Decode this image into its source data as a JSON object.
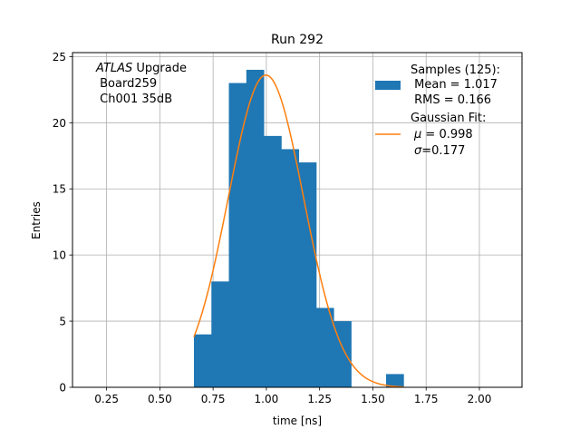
{
  "chart_data": {
    "type": "bar",
    "title": "Run 292",
    "xlabel": "time [ns]",
    "ylabel": "Entries",
    "xlim": [
      0.09,
      2.2
    ],
    "ylim": [
      0,
      25.3
    ],
    "grid": true,
    "xticks": [
      0.25,
      0.5,
      0.75,
      1.0,
      1.25,
      1.5,
      1.75,
      2.0
    ],
    "xtick_labels": [
      "0.25",
      "0.50",
      "0.75",
      "1.00",
      "1.25",
      "1.50",
      "1.75",
      "2.00"
    ],
    "yticks": [
      0,
      5,
      10,
      15,
      20,
      25
    ],
    "ytick_labels": [
      "0",
      "5",
      "10",
      "15",
      "20",
      "25"
    ],
    "annotation": {
      "italic": "ATLAS",
      "line1_rest": " Upgrade",
      "line2": " Board259",
      "line3": " Ch001 35dB"
    },
    "histogram": {
      "color": "#1f77b4",
      "bin_edges": [
        0.66,
        0.742,
        0.824,
        0.906,
        0.988,
        1.07,
        1.152,
        1.234,
        1.316,
        1.398,
        1.48,
        1.562,
        1.644
      ],
      "counts": [
        4,
        8,
        23,
        24,
        19,
        18,
        17,
        6,
        5,
        0,
        0,
        1
      ]
    },
    "fit": {
      "type": "gaussian",
      "color": "#ff7f0e",
      "mu": 0.998,
      "sigma": 0.177,
      "amplitude": 23.6,
      "x_range": [
        0.66,
        1.644
      ]
    },
    "legend": {
      "position": "top-right",
      "hist_lines": [
        "Samples (125):",
        " Mean = 1.017",
        " RMS = 0.166"
      ],
      "fit_line1": "Gaussian Fit:",
      "fit_mu_sym": "μ",
      "fit_mu_rest": " = 0.998",
      "fit_sigma_sym": "σ",
      "fit_sigma_rest": "=0.177"
    }
  }
}
